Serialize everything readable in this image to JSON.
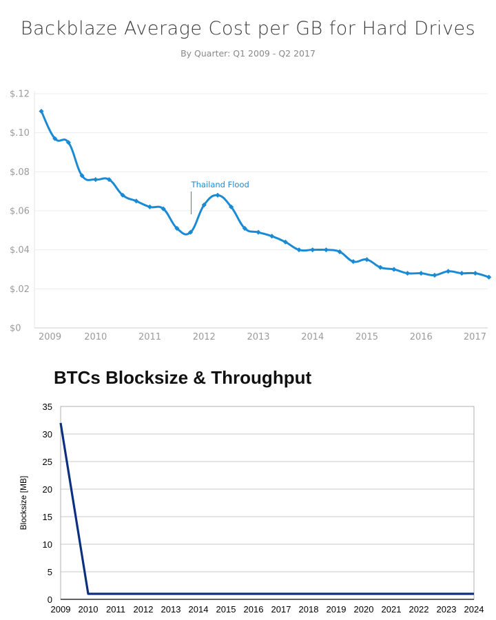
{
  "chart_data": [
    {
      "type": "line",
      "title": "Backblaze Average Cost per GB for Hard Drives",
      "subtitle": "By Quarter: Q1 2009 - Q2 2017",
      "xlabel": "",
      "ylabel": "",
      "x_ticks": [
        "2009",
        "2010",
        "2011",
        "2012",
        "2013",
        "2014",
        "2015",
        "2016",
        "2017"
      ],
      "y_ticks": [
        "$0",
        "$.02",
        "$.04",
        "$.06",
        "$.08",
        "$.10",
        "$.12"
      ],
      "ylim": [
        0,
        0.12
      ],
      "grid": true,
      "color": "#1a8ad4",
      "annotation": {
        "text": "Thailand Flood",
        "x": "Q4 2011"
      },
      "x": [
        "Q1 2009",
        "Q2 2009",
        "Q3 2009",
        "Q4 2009",
        "Q1 2010",
        "Q2 2010",
        "Q3 2010",
        "Q4 2010",
        "Q1 2011",
        "Q2 2011",
        "Q3 2011",
        "Q4 2011",
        "Q1 2012",
        "Q2 2012",
        "Q3 2012",
        "Q4 2012",
        "Q1 2013",
        "Q2 2013",
        "Q3 2013",
        "Q4 2013",
        "Q1 2014",
        "Q2 2014",
        "Q3 2014",
        "Q4 2014",
        "Q1 2015",
        "Q2 2015",
        "Q3 2015",
        "Q4 2015",
        "Q1 2016",
        "Q2 2016",
        "Q3 2016",
        "Q4 2016",
        "Q1 2017",
        "Q2 2017"
      ],
      "values": [
        0.111,
        0.097,
        0.095,
        0.078,
        0.076,
        0.076,
        0.068,
        0.065,
        0.062,
        0.061,
        0.051,
        0.049,
        0.063,
        0.068,
        0.062,
        0.051,
        0.049,
        0.047,
        0.044,
        0.04,
        0.04,
        0.04,
        0.039,
        0.034,
        0.035,
        0.031,
        0.03,
        0.028,
        0.028,
        0.027,
        0.029,
        0.028,
        0.028,
        0.026
      ]
    },
    {
      "type": "line",
      "title": "BTCs Blocksize & Throughput",
      "xlabel": "",
      "ylabel": "Blocksize [MB]",
      "x_ticks": [
        "2009",
        "2010",
        "2011",
        "2012",
        "2013",
        "2014",
        "2015",
        "2016",
        "2017",
        "2018",
        "2019",
        "2020",
        "2021",
        "2022",
        "2023",
        "2024"
      ],
      "y_ticks": [
        "0",
        "5",
        "10",
        "15",
        "20",
        "25",
        "30",
        "35"
      ],
      "ylim": [
        0,
        35
      ],
      "grid": true,
      "color": "#0c2f80",
      "x": [
        2009,
        2010,
        2024
      ],
      "values": [
        32,
        1,
        1
      ]
    }
  ]
}
